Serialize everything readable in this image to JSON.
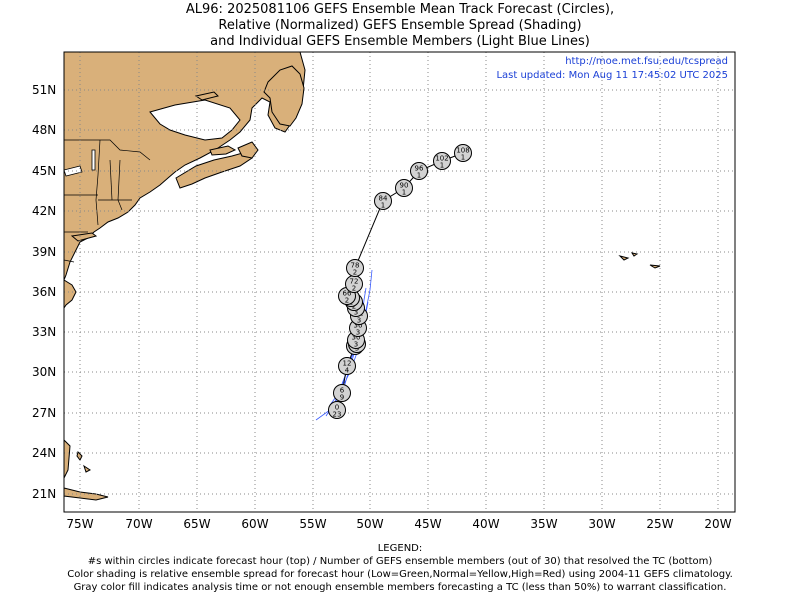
{
  "title_lines": [
    "AL96: 2025081106 GEFS Ensemble Mean Track Forecast (Circles),",
    "Relative (Normalized) GEFS Ensemble Spread (Shading)",
    "and Individual GEFS Ensemble Members (Light Blue Lines)"
  ],
  "credit": {
    "url": "http://moe.met.fsu.edu/tcspread",
    "updated": "Last updated: Mon Aug 11 17:45:02 UTC 2025"
  },
  "lat_labels": [
    "51N",
    "48N",
    "45N",
    "42N",
    "39N",
    "36N",
    "33N",
    "30N",
    "27N",
    "24N",
    "21N"
  ],
  "lon_labels": [
    "75W",
    "70W",
    "65W",
    "60W",
    "55W",
    "50W",
    "45W",
    "40W",
    "35W",
    "30W",
    "25W",
    "20W"
  ],
  "legend": {
    "heading": "LEGEND:",
    "lines": [
      "#s within circles indicate forecast hour (top) / Number of GEFS ensemble members (out of 30) that resolved the TC (bottom)",
      "Color shading is relative ensemble spread for forecast hour (Low=Green,Normal=Yellow,High=Red) using 2004-11 GEFS climatology.",
      "Gray color fill indicates analysis time or not enough ensemble members forecasting a TC (less than 50%) to warrant classification."
    ]
  },
  "colors": {
    "land": "#d9b07a",
    "ocean": "#ffffff",
    "track": "#000000",
    "members": "#3a5cff",
    "circle_fill": "#d3d3d3",
    "credit": "#1a3fd6"
  },
  "track": [
    {
      "hour": "0",
      "members": "23"
    },
    {
      "hour": "6",
      "members": "9"
    },
    {
      "hour": "12",
      "members": "4"
    },
    {
      "hour": "18",
      "members": "3"
    },
    {
      "hour": "24",
      "members": "3"
    },
    {
      "hour": "30",
      "members": "3"
    },
    {
      "hour": "36",
      "members": "3"
    },
    {
      "hour": "42",
      "members": "3"
    },
    {
      "hour": "48",
      "members": "3"
    },
    {
      "hour": "54",
      "members": "2"
    },
    {
      "hour": "60",
      "members": "2"
    },
    {
      "hour": "66",
      "members": "2"
    },
    {
      "hour": "72",
      "members": "2"
    },
    {
      "hour": "78",
      "members": "2"
    },
    {
      "hour": "84",
      "members": "1"
    },
    {
      "hour": "90",
      "members": "1"
    },
    {
      "hour": "96",
      "members": "1"
    },
    {
      "hour": "102",
      "members": "1"
    },
    {
      "hour": "108",
      "members": "1"
    }
  ]
}
